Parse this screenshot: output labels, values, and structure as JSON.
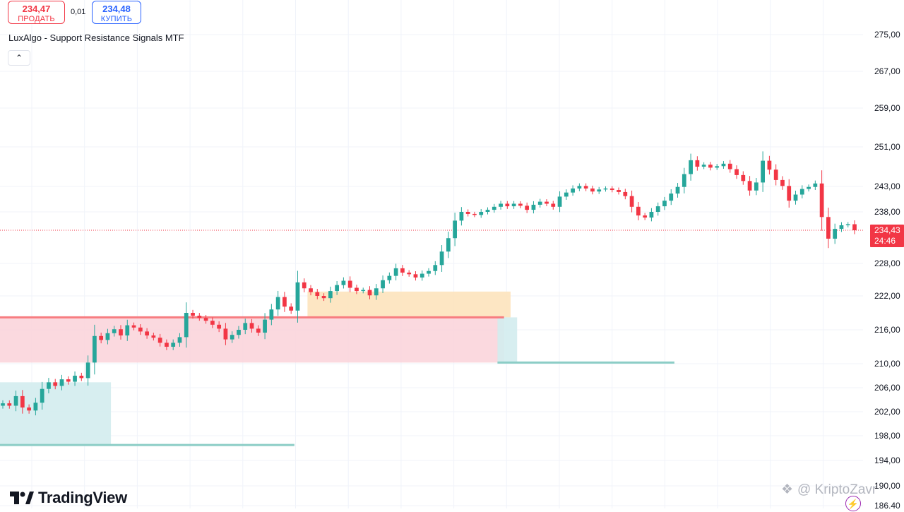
{
  "header": {
    "sell_price": "234,47",
    "sell_label": "ПРОДАТЬ",
    "spread": "0,01",
    "buy_price": "234,48",
    "buy_label": "КУПИТЬ"
  },
  "indicator": {
    "title": "LuxAlgo - Support Resistance Signals MTF",
    "collapse_icon": "chevron-up-icon"
  },
  "branding": {
    "logo_text": "TradingView",
    "watermark": "@ KriptoZavr"
  },
  "colors": {
    "up": "#26a69a",
    "down": "#f23645",
    "grid": "#f0f3fa",
    "resistance_zone": "#fbd5dc",
    "resistance_line": "#f77c80",
    "support_zone": "#d3ecee",
    "support_line": "#8ccdc6",
    "breakout_zone": "#fde3bd"
  },
  "chart_data": {
    "type": "candlestick",
    "y_axis_ticks": [
      "275,00",
      "267,00",
      "259,00",
      "251,00",
      "243,00",
      "238,00",
      "228,00",
      "222,00",
      "216,00",
      "210,00",
      "206,00",
      "202,00",
      "198,00",
      "194,00",
      "190,00",
      "186,40"
    ],
    "last_price": "234,43",
    "countdown": "24:46",
    "ylim": [
      186.4,
      276.5
    ],
    "zones": [
      {
        "kind": "resistance",
        "from_bar": 0,
        "to_bar": 76,
        "top": 218.2,
        "bottom": 210.2
      },
      {
        "kind": "breakout",
        "from_bar": 47,
        "to_bar": 77,
        "top": 222.8,
        "bottom": 218.2
      },
      {
        "kind": "support",
        "from_bar": 0,
        "to_bar": 16,
        "top": 206.9,
        "bottom": 196.5
      },
      {
        "kind": "support",
        "from_bar": 76,
        "to_bar": 78,
        "top": 218.2,
        "bottom": 210.2
      }
    ],
    "levels": [
      {
        "kind": "support",
        "from_bar": 0,
        "to_bar": 44,
        "value": 196.5
      },
      {
        "kind": "support",
        "from_bar": 76,
        "to_bar": 102,
        "value": 210.2
      },
      {
        "kind": "resistance",
        "from_bar": 0,
        "to_bar": 76,
        "value": 218.2
      }
    ],
    "closes": [
      203.4,
      203.0,
      204.6,
      202.7,
      202.2,
      203.5,
      205.8,
      206.9,
      206.3,
      207.4,
      207.0,
      208.0,
      207.6,
      210.2,
      214.9,
      214.2,
      215.4,
      216.1,
      215.0,
      216.8,
      216.4,
      215.7,
      215.0,
      214.6,
      213.7,
      213.0,
      213.7,
      214.7,
      219.0,
      218.5,
      218.1,
      217.6,
      216.9,
      216.2,
      214.3,
      215.1,
      216.0,
      217.2,
      216.2,
      215.5,
      217.8,
      219.6,
      221.8,
      220.1,
      219.4,
      224.5,
      223.4,
      222.7,
      222.0,
      221.6,
      222.9,
      224.0,
      224.8,
      223.5,
      222.9,
      223.1,
      222.1,
      223.4,
      224.9,
      225.7,
      227.1,
      226.3,
      226.0,
      225.4,
      226.1,
      226.6,
      227.7,
      230.3,
      232.9,
      236.3,
      238.0,
      237.6,
      237.4,
      238.0,
      238.4,
      239.0,
      239.6,
      239.1,
      239.6,
      239.2,
      238.4,
      239.4,
      240.0,
      239.6,
      239.0,
      241.0,
      241.8,
      242.6,
      243.1,
      242.6,
      242.0,
      242.4,
      242.6,
      242.3,
      241.9,
      241.1,
      239.0,
      237.3,
      236.9,
      238.0,
      239.1,
      240.2,
      241.6,
      242.9,
      245.5,
      248.3,
      247.0,
      247.4,
      246.8,
      247.1,
      247.6,
      246.5,
      245.3,
      244.1,
      242.2,
      243.8,
      248.2,
      246.4,
      244.3,
      243.1,
      240.2,
      241.4,
      242.5,
      242.9,
      243.6,
      237.0,
      232.8,
      234.7,
      235.4,
      235.6,
      234.43
    ]
  }
}
